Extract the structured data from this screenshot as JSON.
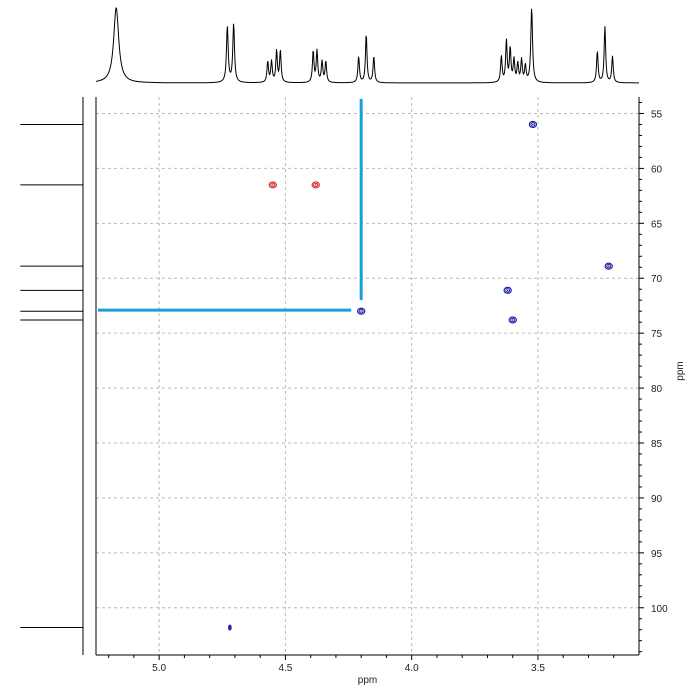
{
  "chart_data": {
    "type": "scatter",
    "kind": "2D HSQC NMR spectrum",
    "title": "",
    "x_axis": {
      "label": "ppm",
      "range": [
        5.25,
        3.1
      ],
      "reversed": true,
      "ticks": [
        5.0,
        4.5,
        4.0,
        3.5
      ],
      "tick_labels": [
        "5.0",
        "4.5",
        "4.0",
        "3.5"
      ]
    },
    "y_axis": {
      "label": "ppm",
      "position": "right",
      "range": [
        53.5,
        104.3
      ],
      "reversed": true,
      "ticks": [
        55,
        60,
        65,
        70,
        75,
        80,
        85,
        90,
        95,
        100
      ],
      "tick_labels": [
        "55",
        "60",
        "65",
        "70",
        "75",
        "80",
        "85",
        "90",
        "95",
        "100"
      ]
    },
    "grid": true,
    "cross_peaks": [
      {
        "x": 3.52,
        "y": 56.0,
        "color": "blue"
      },
      {
        "x": 4.55,
        "y": 61.5,
        "color": "red"
      },
      {
        "x": 4.38,
        "y": 61.5,
        "color": "red"
      },
      {
        "x": 3.22,
        "y": 68.9,
        "color": "blue"
      },
      {
        "x": 3.62,
        "y": 71.1,
        "color": "blue"
      },
      {
        "x": 4.2,
        "y": 73.0,
        "color": "blue"
      },
      {
        "x": 3.6,
        "y": 73.8,
        "color": "blue"
      },
      {
        "x": 4.72,
        "y": 101.8,
        "color": "blue"
      }
    ],
    "cursor_lines": {
      "vertical_x": 4.2,
      "horizontal_y": 72.9,
      "color": "#1a9fdb"
    },
    "projection_1h": [
      {
        "ppm": 5.17,
        "height": 1.0,
        "width": 0.012
      },
      {
        "ppm": 4.73,
        "height": 0.75,
        "width": 0.004
      },
      {
        "ppm": 4.705,
        "height": 0.78,
        "width": 0.004
      },
      {
        "ppm": 4.57,
        "height": 0.28,
        "width": 0.0035
      },
      {
        "ppm": 4.555,
        "height": 0.28,
        "width": 0.0035
      },
      {
        "ppm": 4.535,
        "height": 0.42,
        "width": 0.0035
      },
      {
        "ppm": 4.52,
        "height": 0.42,
        "width": 0.0035
      },
      {
        "ppm": 4.39,
        "height": 0.42,
        "width": 0.0035
      },
      {
        "ppm": 4.375,
        "height": 0.42,
        "width": 0.0035
      },
      {
        "ppm": 4.355,
        "height": 0.28,
        "width": 0.0035
      },
      {
        "ppm": 4.34,
        "height": 0.28,
        "width": 0.0035
      },
      {
        "ppm": 4.21,
        "height": 0.35,
        "width": 0.0035
      },
      {
        "ppm": 4.18,
        "height": 0.65,
        "width": 0.0035
      },
      {
        "ppm": 4.15,
        "height": 0.35,
        "width": 0.0035
      },
      {
        "ppm": 3.645,
        "height": 0.35,
        "width": 0.0035
      },
      {
        "ppm": 3.625,
        "height": 0.55,
        "width": 0.0035
      },
      {
        "ppm": 3.61,
        "height": 0.45,
        "width": 0.0035
      },
      {
        "ppm": 3.595,
        "height": 0.3,
        "width": 0.0035
      },
      {
        "ppm": 3.58,
        "height": 0.25,
        "width": 0.0035
      },
      {
        "ppm": 3.565,
        "height": 0.3,
        "width": 0.0035
      },
      {
        "ppm": 3.55,
        "height": 0.22,
        "width": 0.0035
      },
      {
        "ppm": 3.525,
        "height": 1.0,
        "width": 0.004
      },
      {
        "ppm": 3.265,
        "height": 0.42,
        "width": 0.0035
      },
      {
        "ppm": 3.235,
        "height": 0.75,
        "width": 0.0035
      },
      {
        "ppm": 3.205,
        "height": 0.35,
        "width": 0.0035
      }
    ],
    "projection_13c": [
      {
        "ppm": 56.0,
        "height": 0.95
      },
      {
        "ppm": 61.5,
        "height": 0.95
      },
      {
        "ppm": 68.9,
        "height": 0.95
      },
      {
        "ppm": 71.1,
        "height": 0.95
      },
      {
        "ppm": 73.0,
        "height": 0.95
      },
      {
        "ppm": 73.8,
        "height": 0.95
      },
      {
        "ppm": 101.8,
        "height": 0.95
      }
    ]
  },
  "colors": {
    "positive_contour": "#1a1aa0",
    "negative_contour": "#d42020",
    "cursor": "#1a9fdb",
    "grid": "#bbbbbb",
    "axis": "#000000"
  }
}
